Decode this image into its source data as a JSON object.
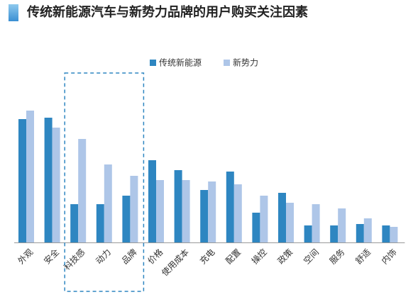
{
  "header": {
    "title": "传统新能源汽车与新势力品牌的用户购买关注因素"
  },
  "colors": {
    "series_traditional": "#2E86C1",
    "series_new": "#AEC6E8",
    "highlight_box": "#2E86C1",
    "title_marker_top": "#8EC9EE",
    "title_marker_bottom": "#3A8FD3"
  },
  "chart_data": {
    "type": "bar",
    "title": "",
    "xlabel": "",
    "ylabel": "",
    "ylim": [
      0,
      100
    ],
    "grid": false,
    "legend_position": "top-right",
    "categories": [
      "外观",
      "安全",
      "科技感",
      "动力",
      "品牌",
      "价格",
      "使用成本",
      "充电",
      "配置",
      "操控",
      "政策",
      "空间",
      "服务",
      "舒适",
      "内饰"
    ],
    "series": [
      {
        "name": "传统新能源",
        "values": [
          87,
          88,
          27,
          27,
          33,
          58,
          51,
          37,
          50,
          21,
          35,
          12,
          12,
          13,
          12
        ]
      },
      {
        "name": "新势力",
        "values": [
          93,
          81,
          73,
          55,
          47,
          44,
          44,
          43,
          41,
          33,
          28,
          27,
          24,
          17,
          11
        ]
      }
    ],
    "highlight_categories": [
      "科技感",
      "动力",
      "品牌"
    ]
  }
}
